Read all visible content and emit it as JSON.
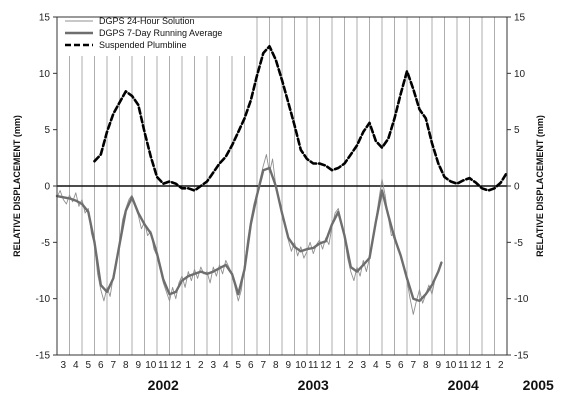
{
  "chart_data": {
    "type": "line",
    "ylabel_left": "RELATIVE DISPLACEMENT (mm)",
    "ylabel_right": "RELATIVE DISPLACEMENT (mm)",
    "ylim": [
      -15,
      15
    ],
    "yticks": [
      -15,
      -10,
      -5,
      0,
      5,
      10,
      15
    ],
    "x_range": [
      "2002-03",
      "2005-03"
    ],
    "month_labels": [
      "3",
      "4",
      "5",
      "6",
      "7",
      "8",
      "9",
      "10",
      "11",
      "12",
      "1",
      "2",
      "3",
      "4",
      "5",
      "6",
      "7",
      "8",
      "9",
      "10",
      "11",
      "12",
      "1",
      "2",
      "3",
      "4",
      "5",
      "6",
      "7",
      "8",
      "9",
      "10",
      "11",
      "12",
      "1",
      "2"
    ],
    "year_labels": [
      {
        "label": "2002",
        "month": 8.5
      },
      {
        "label": "2003",
        "month": 20.5
      },
      {
        "label": "2004",
        "month": 32.5
      },
      {
        "label": "2005",
        "month": 38.5
      }
    ],
    "grid": true,
    "zero_line": true,
    "legend_position": "top-left",
    "series": [
      {
        "name": "DGPS 24-Hour Solution",
        "style": "thin-solid",
        "color": "#909090",
        "points": [
          [
            0.0,
            -1.0
          ],
          [
            0.25,
            -0.4
          ],
          [
            0.5,
            -1.2
          ],
          [
            0.75,
            -1.6
          ],
          [
            1.0,
            -0.8
          ],
          [
            1.25,
            -1.4
          ],
          [
            1.5,
            -0.6
          ],
          [
            1.75,
            -1.8
          ],
          [
            2.0,
            -1.2
          ],
          [
            2.25,
            -2.4
          ],
          [
            2.5,
            -2.0
          ],
          [
            2.75,
            -4.2
          ],
          [
            3.0,
            -5.2
          ],
          [
            3.25,
            -7.8
          ],
          [
            3.5,
            -9.2
          ],
          [
            3.75,
            -10.2
          ],
          [
            4.0,
            -9.0
          ],
          [
            4.25,
            -9.8
          ],
          [
            4.5,
            -8.0
          ],
          [
            4.75,
            -7.0
          ],
          [
            5.0,
            -5.0
          ],
          [
            5.25,
            -3.0
          ],
          [
            5.5,
            -2.0
          ],
          [
            5.75,
            -1.2
          ],
          [
            6.0,
            -0.8
          ],
          [
            6.25,
            -1.8
          ],
          [
            6.5,
            -2.6
          ],
          [
            6.75,
            -3.8
          ],
          [
            7.0,
            -3.2
          ],
          [
            7.25,
            -4.4
          ],
          [
            7.5,
            -4.0
          ],
          [
            7.75,
            -5.6
          ],
          [
            8.0,
            -6.2
          ],
          [
            8.25,
            -7.4
          ],
          [
            8.5,
            -8.6
          ],
          [
            8.75,
            -9.4
          ],
          [
            9.0,
            -10.2
          ],
          [
            9.25,
            -9.0
          ],
          [
            9.5,
            -10.0
          ],
          [
            9.75,
            -8.6
          ],
          [
            10.0,
            -8.0
          ],
          [
            10.25,
            -9.0
          ],
          [
            10.5,
            -7.6
          ],
          [
            10.75,
            -8.4
          ],
          [
            11.0,
            -7.4
          ],
          [
            11.25,
            -8.2
          ],
          [
            11.5,
            -7.2
          ],
          [
            11.75,
            -7.8
          ],
          [
            12.0,
            -7.6
          ],
          [
            12.25,
            -8.6
          ],
          [
            12.5,
            -7.2
          ],
          [
            12.75,
            -8.0
          ],
          [
            13.0,
            -7.0
          ],
          [
            13.25,
            -7.8
          ],
          [
            13.5,
            -6.6
          ],
          [
            13.75,
            -7.2
          ],
          [
            14.0,
            -7.8
          ],
          [
            14.25,
            -9.0
          ],
          [
            14.5,
            -10.2
          ],
          [
            14.75,
            -9.2
          ],
          [
            15.0,
            -7.0
          ],
          [
            15.25,
            -4.8
          ],
          [
            15.5,
            -3.0
          ],
          [
            15.75,
            -1.6
          ],
          [
            16.0,
            -0.6
          ],
          [
            16.25,
            0.6
          ],
          [
            16.5,
            1.8
          ],
          [
            16.75,
            2.8
          ],
          [
            17.0,
            1.2
          ],
          [
            17.25,
            2.4
          ],
          [
            17.5,
            0.0
          ],
          [
            17.75,
            -1.4
          ],
          [
            18.0,
            -2.6
          ],
          [
            18.25,
            -3.6
          ],
          [
            18.5,
            -4.8
          ],
          [
            18.75,
            -5.8
          ],
          [
            19.0,
            -5.0
          ],
          [
            19.25,
            -6.2
          ],
          [
            19.5,
            -5.4
          ],
          [
            19.75,
            -6.4
          ],
          [
            20.0,
            -5.8
          ],
          [
            20.25,
            -5.0
          ],
          [
            20.5,
            -6.0
          ],
          [
            20.75,
            -5.2
          ],
          [
            21.0,
            -4.8
          ],
          [
            21.25,
            -5.6
          ],
          [
            21.5,
            -4.6
          ],
          [
            21.75,
            -5.2
          ],
          [
            22.0,
            -3.6
          ],
          [
            22.25,
            -2.4
          ],
          [
            22.5,
            -2.0
          ],
          [
            22.75,
            -3.2
          ],
          [
            23.0,
            -4.6
          ],
          [
            23.25,
            -6.4
          ],
          [
            23.5,
            -7.6
          ],
          [
            23.75,
            -8.4
          ],
          [
            24.0,
            -7.2
          ],
          [
            24.25,
            -8.0
          ],
          [
            24.5,
            -6.6
          ],
          [
            24.75,
            -7.6
          ],
          [
            25.0,
            -6.4
          ],
          [
            25.25,
            -5.0
          ],
          [
            25.5,
            -3.0
          ],
          [
            25.75,
            -1.2
          ],
          [
            26.0,
            0.6
          ],
          [
            26.25,
            -0.8
          ],
          [
            26.5,
            -2.8
          ],
          [
            26.75,
            -4.4
          ],
          [
            27.0,
            -4.2
          ],
          [
            27.25,
            -5.6
          ],
          [
            27.5,
            -6.0
          ],
          [
            27.75,
            -7.2
          ],
          [
            28.0,
            -8.4
          ],
          [
            28.25,
            -10.0
          ],
          [
            28.5,
            -11.4
          ],
          [
            28.75,
            -10.2
          ],
          [
            29.0,
            -9.2
          ],
          [
            29.25,
            -10.4
          ],
          [
            29.5,
            -9.6
          ],
          [
            29.75,
            -8.8
          ],
          [
            30.0,
            -9.6
          ],
          [
            30.25,
            -8.2
          ],
          [
            30.5,
            -7.6
          ],
          [
            30.75,
            -7.0
          ]
        ]
      },
      {
        "name": "DGPS 7-Day Running Average",
        "style": "thick-solid",
        "color": "#6e6e6e",
        "points": [
          [
            0.0,
            -0.9
          ],
          [
            0.5,
            -1.0
          ],
          [
            1.0,
            -1.1
          ],
          [
            1.5,
            -1.3
          ],
          [
            2.0,
            -1.6
          ],
          [
            2.5,
            -2.3
          ],
          [
            3.0,
            -5.0
          ],
          [
            3.5,
            -8.8
          ],
          [
            4.0,
            -9.4
          ],
          [
            4.5,
            -8.2
          ],
          [
            5.0,
            -5.2
          ],
          [
            5.5,
            -2.2
          ],
          [
            6.0,
            -1.0
          ],
          [
            6.5,
            -2.4
          ],
          [
            7.0,
            -3.4
          ],
          [
            7.5,
            -4.2
          ],
          [
            8.0,
            -6.0
          ],
          [
            8.5,
            -8.3
          ],
          [
            9.0,
            -9.6
          ],
          [
            9.5,
            -9.4
          ],
          [
            10.0,
            -8.4
          ],
          [
            10.5,
            -8.0
          ],
          [
            11.0,
            -7.8
          ],
          [
            11.5,
            -7.6
          ],
          [
            12.0,
            -7.8
          ],
          [
            12.5,
            -7.6
          ],
          [
            13.0,
            -7.3
          ],
          [
            13.5,
            -7.0
          ],
          [
            14.0,
            -7.8
          ],
          [
            14.5,
            -9.6
          ],
          [
            15.0,
            -7.4
          ],
          [
            15.5,
            -3.4
          ],
          [
            16.0,
            -0.8
          ],
          [
            16.5,
            1.4
          ],
          [
            17.0,
            1.6
          ],
          [
            17.5,
            0.0
          ],
          [
            18.0,
            -2.4
          ],
          [
            18.5,
            -4.6
          ],
          [
            19.0,
            -5.4
          ],
          [
            19.5,
            -5.8
          ],
          [
            20.0,
            -5.6
          ],
          [
            20.5,
            -5.5
          ],
          [
            21.0,
            -5.1
          ],
          [
            21.5,
            -4.9
          ],
          [
            22.0,
            -3.4
          ],
          [
            22.5,
            -2.3
          ],
          [
            23.0,
            -4.4
          ],
          [
            23.5,
            -7.2
          ],
          [
            24.0,
            -7.6
          ],
          [
            24.5,
            -7.0
          ],
          [
            25.0,
            -6.4
          ],
          [
            25.5,
            -3.2
          ],
          [
            26.0,
            -0.4
          ],
          [
            26.5,
            -2.6
          ],
          [
            27.0,
            -4.6
          ],
          [
            27.5,
            -6.2
          ],
          [
            28.0,
            -8.2
          ],
          [
            28.5,
            -10.0
          ],
          [
            29.0,
            -10.2
          ],
          [
            29.5,
            -9.6
          ],
          [
            30.0,
            -8.8
          ],
          [
            30.5,
            -7.6
          ],
          [
            30.75,
            -6.8
          ]
        ]
      },
      {
        "name": "Suspended Plumbline",
        "style": "thick-dashed",
        "color": "#000000",
        "points": [
          [
            3.0,
            2.2
          ],
          [
            3.5,
            2.8
          ],
          [
            4.0,
            4.8
          ],
          [
            4.5,
            6.4
          ],
          [
            5.0,
            7.4
          ],
          [
            5.5,
            8.4
          ],
          [
            6.0,
            8.0
          ],
          [
            6.5,
            7.2
          ],
          [
            7.0,
            4.8
          ],
          [
            7.5,
            2.6
          ],
          [
            8.0,
            0.8
          ],
          [
            8.5,
            0.2
          ],
          [
            9.0,
            0.4
          ],
          [
            9.5,
            0.2
          ],
          [
            10.0,
            -0.2
          ],
          [
            10.5,
            -0.2
          ],
          [
            11.0,
            -0.4
          ],
          [
            11.5,
            0.0
          ],
          [
            12.0,
            0.4
          ],
          [
            12.5,
            1.2
          ],
          [
            13.0,
            2.0
          ],
          [
            13.5,
            2.6
          ],
          [
            14.0,
            3.6
          ],
          [
            14.5,
            4.8
          ],
          [
            15.0,
            6.0
          ],
          [
            15.5,
            7.6
          ],
          [
            16.0,
            9.8
          ],
          [
            16.5,
            11.8
          ],
          [
            17.0,
            12.4
          ],
          [
            17.5,
            11.2
          ],
          [
            18.0,
            9.4
          ],
          [
            18.5,
            7.4
          ],
          [
            19.0,
            5.4
          ],
          [
            19.5,
            3.2
          ],
          [
            20.0,
            2.4
          ],
          [
            20.5,
            2.0
          ],
          [
            21.0,
            2.0
          ],
          [
            21.5,
            1.8
          ],
          [
            22.0,
            1.4
          ],
          [
            22.5,
            1.6
          ],
          [
            23.0,
            2.0
          ],
          [
            23.5,
            2.8
          ],
          [
            24.0,
            3.6
          ],
          [
            24.5,
            4.8
          ],
          [
            25.0,
            5.6
          ],
          [
            25.5,
            4.0
          ],
          [
            26.0,
            3.4
          ],
          [
            26.5,
            4.2
          ],
          [
            27.0,
            6.0
          ],
          [
            27.5,
            8.2
          ],
          [
            28.0,
            10.2
          ],
          [
            28.5,
            8.6
          ],
          [
            29.0,
            6.8
          ],
          [
            29.5,
            6.0
          ],
          [
            30.0,
            3.8
          ],
          [
            30.5,
            2.0
          ],
          [
            31.0,
            0.8
          ],
          [
            31.5,
            0.4
          ],
          [
            32.0,
            0.2
          ],
          [
            32.5,
            0.5
          ],
          [
            33.0,
            0.7
          ],
          [
            33.5,
            0.3
          ],
          [
            34.0,
            -0.2
          ],
          [
            34.5,
            -0.4
          ],
          [
            35.0,
            -0.2
          ],
          [
            35.5,
            0.3
          ],
          [
            36.0,
            1.2
          ]
        ]
      }
    ]
  }
}
